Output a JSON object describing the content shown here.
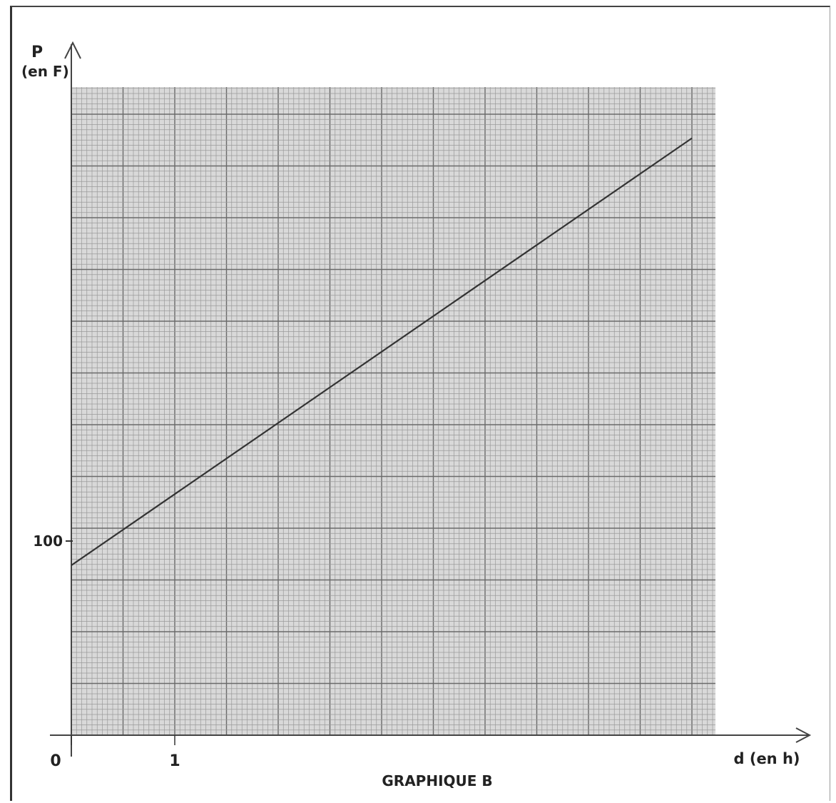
{
  "chart_data": {
    "type": "line",
    "title": "GRAPHIQUE B",
    "xlabel": "d (en h)",
    "ylabel": "P",
    "ylabel_unit": "(en F)",
    "x_ticks": [
      {
        "value": 0,
        "label": "0"
      },
      {
        "value": 1,
        "label": "1"
      }
    ],
    "y_ticks": [
      {
        "value": 100,
        "label": "100"
      }
    ],
    "xlim": [
      0,
      6.2
    ],
    "ylim": [
      80,
      145
    ],
    "grid": true,
    "series": [
      {
        "x": [
          0,
          6.0
        ],
        "y": [
          97.5,
          141.5
        ]
      }
    ],
    "colors": {
      "grid_fine": "#9a9a9a",
      "grid_major": "#6a6a6a",
      "line": "#333333",
      "paper": "#d9d9d9"
    }
  }
}
